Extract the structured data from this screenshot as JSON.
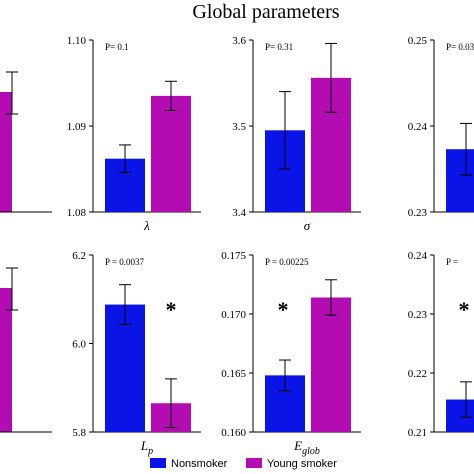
{
  "title": "Global parameters",
  "colors": {
    "nonsmoker": "#0a14e6",
    "young_smoker": "#b20cb2"
  },
  "legend": [
    {
      "label": "Nonsmoker",
      "color": "#0a14e6"
    },
    {
      "label": "Young smoker",
      "color": "#b20cb2"
    }
  ],
  "chart_data": [
    {
      "type": "bar",
      "series": [
        {
          "name": "Young smoker",
          "value": 0.0,
          "err": 0.0
        }
      ],
      "yticks": [],
      "ylim": [
        0,
        1
      ],
      "xlabel": "",
      "pvalue": "",
      "significant": false,
      "partial": "left"
    },
    {
      "type": "bar",
      "xlabel": "λ",
      "pvalue": "P= 0.1",
      "significant": false,
      "ylim": [
        1.08,
        1.1
      ],
      "yticks": [
        "1.08",
        "1.09",
        "1.10"
      ],
      "series": [
        {
          "name": "Nonsmoker",
          "value": 1.0862,
          "err": 0.0016
        },
        {
          "name": "Young smoker",
          "value": 1.0935,
          "err": 0.0017
        }
      ]
    },
    {
      "type": "bar",
      "xlabel": "σ",
      "pvalue": "P= 0.31",
      "significant": false,
      "ylim": [
        3.4,
        3.6
      ],
      "yticks": [
        "3.4",
        "3.5",
        "3.6"
      ],
      "series": [
        {
          "name": "Nonsmoker",
          "value": 3.495,
          "err": 0.045
        },
        {
          "name": "Young smoker",
          "value": 3.556,
          "err": 0.04
        }
      ]
    },
    {
      "type": "bar",
      "xlabel": "",
      "pvalue": "P= 0.03",
      "significant": false,
      "ylim": [
        0.23,
        0.25
      ],
      "yticks": [
        "0.23",
        "0.24",
        "0.25"
      ],
      "series": [
        {
          "name": "Nonsmoker",
          "value": 0.2373,
          "err": 0.003
        }
      ],
      "partial": "right"
    },
    {
      "type": "bar",
      "series": [
        {
          "name": "Young smoker",
          "value": 0.0,
          "err": 0.0
        }
      ],
      "yticks": [],
      "ylim": [
        0,
        1
      ],
      "xlabel": "",
      "pvalue": "",
      "significant": false,
      "partial": "left"
    },
    {
      "type": "bar",
      "xlabel": "L",
      "xlabel_sub": "p",
      "pvalue": "P = 0.0037",
      "significant": true,
      "ylim": [
        5.8,
        6.2
      ],
      "yticks": [
        "5.8",
        "6.0",
        "6.2"
      ],
      "series": [
        {
          "name": "Nonsmoker",
          "value": 6.088,
          "err": 0.045
        },
        {
          "name": "Young smoker",
          "value": 5.865,
          "err": 0.055
        }
      ]
    },
    {
      "type": "bar",
      "xlabel": "E",
      "xlabel_sub": "glob",
      "pvalue": "P = 0.00225",
      "significant": true,
      "ylim": [
        0.16,
        0.175
      ],
      "yticks": [
        "0.160",
        "0.165",
        "0.170",
        "0.175"
      ],
      "series": [
        {
          "name": "Nonsmoker",
          "value": 0.1648,
          "err": 0.0013
        },
        {
          "name": "Young smoker",
          "value": 0.1714,
          "err": 0.0015
        }
      ]
    },
    {
      "type": "bar",
      "xlabel": "",
      "pvalue": "P =",
      "significant": true,
      "ylim": [
        0.21,
        0.24
      ],
      "yticks": [
        "0.21",
        "0.22",
        "0.23",
        "0.24"
      ],
      "series": [
        {
          "name": "Nonsmoker",
          "value": 0.2155,
          "err": 0.003
        }
      ],
      "partial": "right"
    }
  ]
}
